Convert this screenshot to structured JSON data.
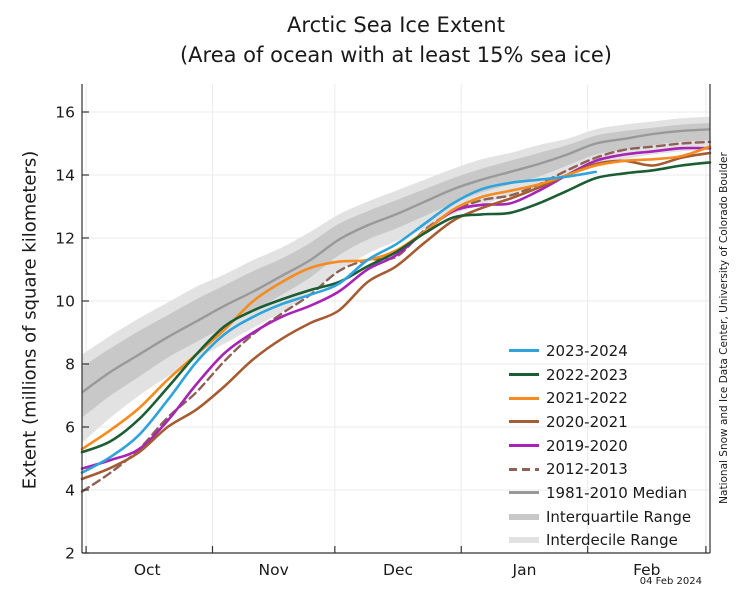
{
  "header": {
    "title": "Arctic Sea Ice Extent",
    "subtitle": "(Area of ocean with at least 15% sea ice)"
  },
  "y_axis_label": "Extent (millions of square kilometers)",
  "credit": "National Snow and Ice Data Center, University of Colorado Boulder",
  "date_label": "04 Feb 2024",
  "colors": {
    "blue_2023_2024": "#2FA3DC",
    "green_2022_2023": "#1B5E34",
    "orange_2021_2022": "#F68B1F",
    "sienna_2020_2021": "#A65C33",
    "magenta_2019_2020": "#A823B6",
    "brown_dashed_2012_2013": "#8D6156",
    "median_gray": "#999999",
    "interquartile_gray": "#C8C8C8",
    "interdecile_gray": "#E2E2E2",
    "axis": "#333333",
    "text": "#1A1A1A",
    "grid": "#EBEBEB"
  },
  "chart_data": {
    "type": "line",
    "title": "Arctic Sea Ice Extent",
    "subtitle": "(Area of ocean with at least 15% sea ice)",
    "xlabel": "",
    "ylabel": "Extent (millions of square kilometers)",
    "ylim": [
      2,
      17
    ],
    "grid": true,
    "legend_position": "lower right inside plot",
    "x_unit": "days since Sep 30",
    "x_range_days": [
      0,
      154
    ],
    "x_days": [
      0,
      7,
      14,
      21,
      28,
      35,
      42,
      49,
      56,
      63,
      70,
      77,
      84,
      91,
      98,
      105,
      112,
      119,
      126,
      133,
      140,
      147,
      154
    ],
    "x_month_tick_days": [
      1,
      32,
      62,
      93,
      124,
      153
    ],
    "x_month_labels": [
      {
        "label": "Oct",
        "day": 16
      },
      {
        "label": "Nov",
        "day": 47
      },
      {
        "label": "Dec",
        "day": 77.5
      },
      {
        "label": "Jan",
        "day": 108.5
      },
      {
        "label": "Feb",
        "day": 138.5
      }
    ],
    "y_ticks": [
      2,
      4,
      6,
      8,
      10,
      12,
      14,
      16
    ],
    "series": [
      {
        "name": "2012-2013",
        "color": "#8D6156",
        "style": "dashed",
        "width": 2.4,
        "values": [
          3.95,
          4.55,
          5.3,
          6.3,
          7.1,
          8.1,
          8.95,
          9.6,
          10.2,
          10.95,
          11.3,
          11.4,
          12.25,
          12.85,
          13.2,
          13.35,
          13.7,
          14.15,
          14.55,
          14.8,
          14.9,
          15.0,
          15.05
        ]
      },
      {
        "name": "2019-2020",
        "color": "#A823B6",
        "style": "solid",
        "width": 2.6,
        "values": [
          4.68,
          4.95,
          5.3,
          6.2,
          7.35,
          8.35,
          9.0,
          9.5,
          9.85,
          10.3,
          11.0,
          11.45,
          12.2,
          12.85,
          13.05,
          13.1,
          13.5,
          14.0,
          14.45,
          14.65,
          14.75,
          14.85,
          14.85
        ]
      },
      {
        "name": "2020-2021",
        "color": "#A65C33",
        "style": "solid",
        "width": 2.6,
        "values": [
          4.35,
          4.7,
          5.2,
          6.0,
          6.55,
          7.3,
          8.15,
          8.8,
          9.3,
          9.7,
          10.6,
          11.1,
          11.85,
          12.55,
          12.95,
          13.25,
          13.6,
          14.0,
          14.35,
          14.45,
          14.3,
          14.55,
          14.7
        ]
      },
      {
        "name": "2021-2022",
        "color": "#F68B1F",
        "style": "solid",
        "width": 2.6,
        "values": [
          5.3,
          5.9,
          6.6,
          7.5,
          8.3,
          9.1,
          10.0,
          10.6,
          11.05,
          11.25,
          11.3,
          11.6,
          12.2,
          12.9,
          13.3,
          13.5,
          13.7,
          14.0,
          14.3,
          14.45,
          14.5,
          14.6,
          14.9
        ]
      },
      {
        "name": "2022-2023",
        "color": "#1B5E34",
        "style": "solid",
        "width": 2.6,
        "values": [
          5.2,
          5.55,
          6.25,
          7.25,
          8.3,
          9.2,
          9.7,
          10.05,
          10.35,
          10.6,
          11.1,
          11.55,
          12.15,
          12.65,
          12.75,
          12.8,
          13.1,
          13.5,
          13.9,
          14.05,
          14.15,
          14.3,
          14.4
        ]
      },
      {
        "name": "2023-2024",
        "color": "#2FA3DC",
        "style": "solid",
        "width": 2.6,
        "end_day": 126,
        "values": [
          4.55,
          5.05,
          5.75,
          6.85,
          8.05,
          8.95,
          9.5,
          9.9,
          10.2,
          10.55,
          11.3,
          11.8,
          12.45,
          13.1,
          13.55,
          13.75,
          13.85,
          13.95,
          14.1
        ]
      }
    ],
    "median": {
      "name": "1981-2010 Median",
      "color": "#999999",
      "width": 2.4,
      "values": [
        7.1,
        7.75,
        8.3,
        8.85,
        9.35,
        9.85,
        10.3,
        10.8,
        11.3,
        11.95,
        12.4,
        12.75,
        13.15,
        13.55,
        13.85,
        14.1,
        14.35,
        14.65,
        15.0,
        15.15,
        15.3,
        15.4,
        15.45
      ]
    },
    "bands": {
      "interquartile": {
        "name": "Interquartile Range",
        "color": "#C8C8C8",
        "upper": [
          7.9,
          8.5,
          9.05,
          9.55,
          10.05,
          10.5,
          10.95,
          11.35,
          11.85,
          12.45,
          12.85,
          13.2,
          13.55,
          13.9,
          14.2,
          14.45,
          14.7,
          14.95,
          15.25,
          15.4,
          15.5,
          15.6,
          15.65
        ],
        "lower": [
          6.3,
          7.0,
          7.6,
          8.2,
          8.7,
          9.2,
          9.7,
          10.2,
          10.75,
          11.45,
          11.95,
          12.3,
          12.7,
          13.1,
          13.45,
          13.7,
          13.95,
          14.3,
          14.65,
          14.8,
          14.95,
          15.05,
          15.1
        ]
      },
      "interdecile": {
        "name": "Interdecile Range",
        "color": "#E2E2E2",
        "upper": [
          8.3,
          8.9,
          9.45,
          9.95,
          10.45,
          10.85,
          11.3,
          11.7,
          12.2,
          12.75,
          13.15,
          13.5,
          13.85,
          14.2,
          14.5,
          14.7,
          14.95,
          15.15,
          15.45,
          15.6,
          15.7,
          15.8,
          15.85
        ],
        "lower": [
          5.5,
          6.3,
          7.0,
          7.6,
          8.15,
          8.65,
          9.15,
          9.65,
          10.25,
          10.95,
          11.5,
          11.9,
          12.3,
          12.75,
          13.05,
          13.35,
          13.6,
          13.95,
          14.35,
          14.5,
          14.65,
          14.75,
          14.8
        ]
      }
    }
  },
  "legend": {
    "items": [
      {
        "label": "2023-2024",
        "color": "#2FA3DC",
        "kind": "line"
      },
      {
        "label": "2022-2023",
        "color": "#1B5E34",
        "kind": "line"
      },
      {
        "label": "2021-2022",
        "color": "#F68B1F",
        "kind": "line"
      },
      {
        "label": "2020-2021",
        "color": "#A65C33",
        "kind": "line"
      },
      {
        "label": "2019-2020",
        "color": "#A823B6",
        "kind": "line"
      },
      {
        "label": "2012-2013",
        "color": "#8D6156",
        "kind": "dashed"
      },
      {
        "label": "1981-2010 Median",
        "color": "#999999",
        "kind": "line"
      },
      {
        "label": "Interquartile Range",
        "color": "#C8C8C8",
        "kind": "band"
      },
      {
        "label": "Interdecile Range",
        "color": "#E2E2E2",
        "kind": "band"
      }
    ]
  }
}
